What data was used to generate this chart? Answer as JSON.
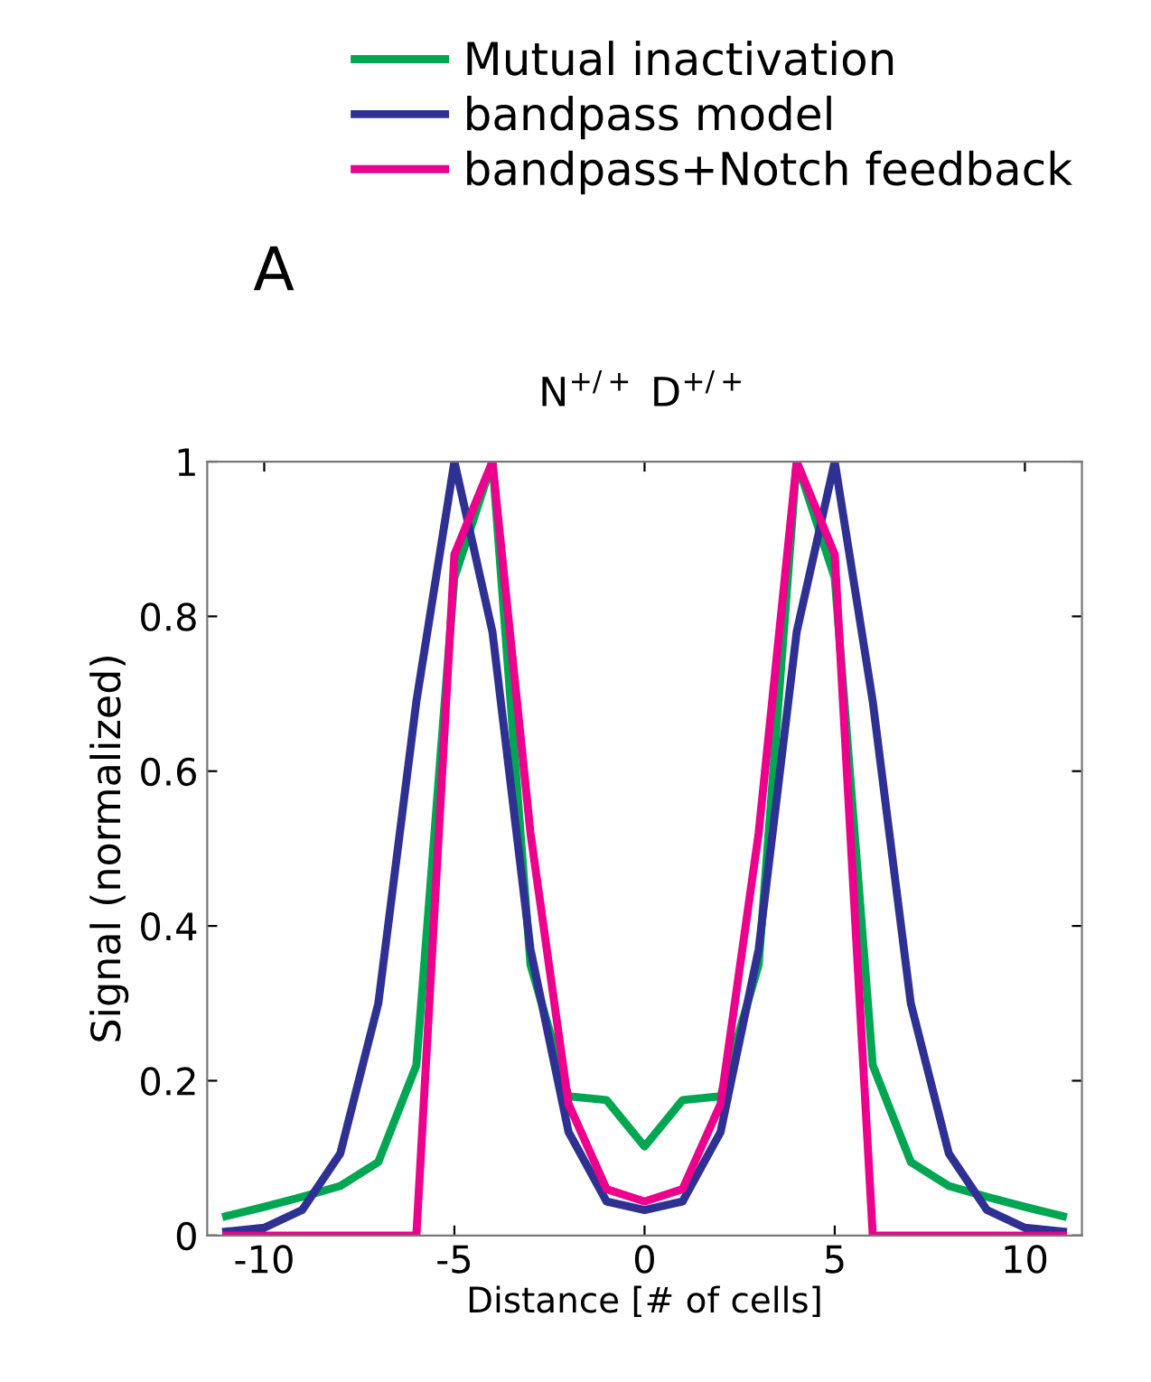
{
  "chart_data": {
    "type": "line",
    "title": "N$^{+/+}$ D$^{+/+}$",
    "xlabel": "Distance [# of cells]",
    "ylabel": "Signal (normalized)",
    "annotations": [
      "A"
    ],
    "x": [
      -11,
      -10,
      -9,
      -8,
      -7,
      -6,
      -5,
      -4,
      -3,
      -2,
      -1,
      0,
      1,
      2,
      3,
      4,
      5,
      6,
      7,
      8,
      9,
      10,
      11
    ],
    "series": [
      {
        "name": "Mutual inactivation",
        "color": "#00a651",
        "values": [
          0.025,
          0.037,
          0.05,
          0.064,
          0.095,
          0.22,
          0.85,
          1.0,
          0.35,
          0.18,
          0.175,
          0.115,
          0.175,
          0.18,
          0.35,
          1.0,
          0.85,
          0.22,
          0.095,
          0.064,
          0.05,
          0.037,
          0.025
        ]
      },
      {
        "name": "bandpass model",
        "color": "#2e3192",
        "values": [
          0.005,
          0.01,
          0.033,
          0.106,
          0.3,
          0.69,
          1.0,
          0.78,
          0.37,
          0.134,
          0.044,
          0.033,
          0.044,
          0.134,
          0.37,
          0.78,
          1.0,
          0.69,
          0.3,
          0.106,
          0.033,
          0.01,
          0.005
        ]
      },
      {
        "name": "bandpass+Notch feedback",
        "color": "#ec008c",
        "values": [
          0,
          0,
          0,
          0,
          0,
          0,
          0.88,
          1.0,
          0.52,
          0.17,
          0.06,
          0.044,
          0.06,
          0.17,
          0.52,
          1.0,
          0.88,
          0,
          0,
          0,
          0,
          0,
          0
        ]
      }
    ],
    "xlim": [
      -11.5,
      11.5
    ],
    "xticks": [
      -10,
      -5,
      0,
      5,
      10
    ],
    "ylim": [
      0,
      1
    ],
    "yticks": [
      0,
      0.2,
      0.4,
      0.6,
      0.8,
      1
    ],
    "grid": false,
    "legend": "top",
    "marker": "none",
    "line_style": "solid"
  }
}
